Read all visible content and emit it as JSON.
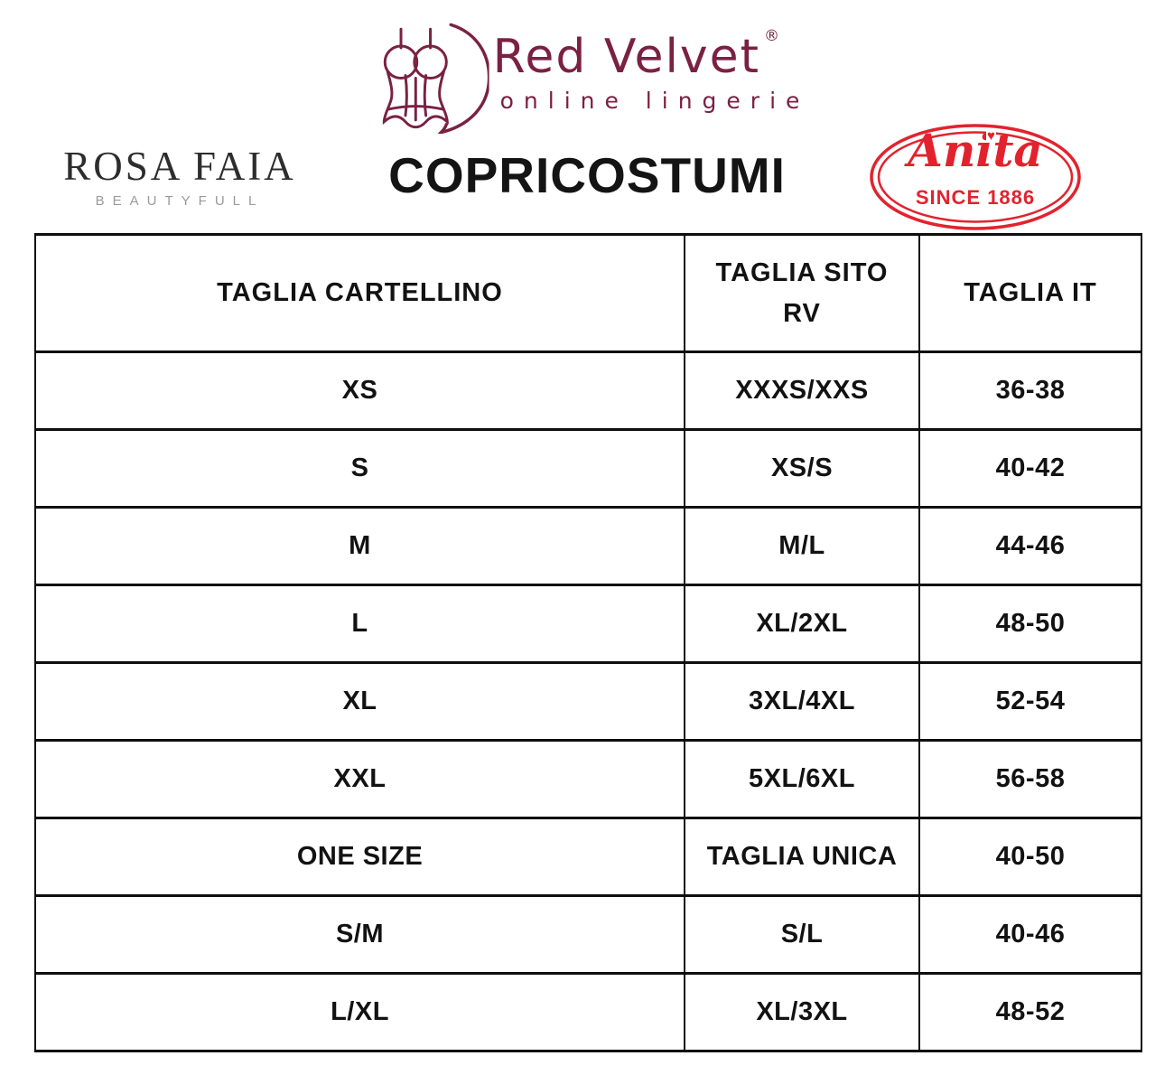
{
  "header": {
    "red_velvet": {
      "name": "Red Velvet",
      "registered_mark": "®",
      "tagline": "online lingerie"
    },
    "rosa_faia": {
      "name": "ROSA FAIA",
      "tagline": "BEAUTYFULL"
    },
    "title": "COPRICOSTUMI",
    "anita": {
      "name": "Anita",
      "heart": "♥",
      "since": "SINCE 1886"
    }
  },
  "colors": {
    "burgundy": "#7a2142",
    "anita_red": "#e2232e",
    "ink": "#111111",
    "gray_tagline": "#9a9a9a",
    "table_border": "#0e0e0e",
    "background": "#ffffff"
  },
  "table": {
    "columns": [
      "TAGLIA CARTELLINO",
      "TAGLIA SITO RV",
      "TAGLIA IT"
    ],
    "rows": [
      [
        "XS",
        "XXXS/XXS",
        "36-38"
      ],
      [
        "S",
        "XS/S",
        "40-42"
      ],
      [
        "M",
        "M/L",
        "44-46"
      ],
      [
        "L",
        "XL/2XL",
        "48-50"
      ],
      [
        "XL",
        "3XL/4XL",
        "52-54"
      ],
      [
        "XXL",
        "5XL/6XL",
        "56-58"
      ],
      [
        "ONE SIZE",
        "TAGLIA UNICA",
        "40-50"
      ],
      [
        "S/M",
        "S/L",
        "40-46"
      ],
      [
        "L/XL",
        "XL/3XL",
        "48-52"
      ]
    ]
  }
}
